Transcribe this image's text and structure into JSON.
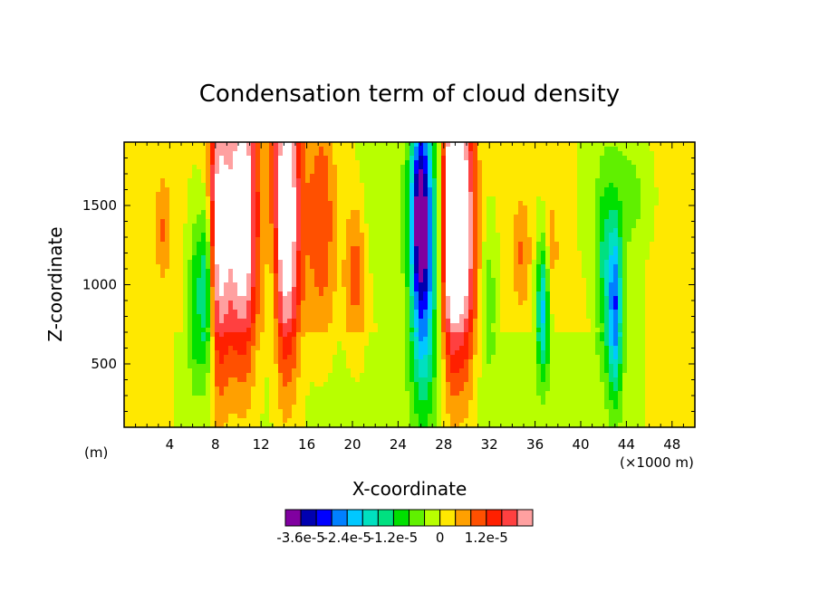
{
  "chart_data": {
    "type": "heatmap",
    "title": "Condensation term of cloud density",
    "xlabel": "X-coordinate",
    "ylabel": "Z-coordinate",
    "x_unit_left": "(m)",
    "x_unit_right": "(×1000 m)",
    "xlim": [
      0,
      50
    ],
    "ylim": [
      100,
      1900
    ],
    "x_ticks": [
      4,
      8,
      12,
      16,
      20,
      24,
      28,
      32,
      36,
      40,
      44,
      48
    ],
    "x_tick_labels": [
      "4",
      "8",
      "12",
      "16",
      "20",
      "24",
      "28",
      "32",
      "36",
      "40",
      "44",
      "48"
    ],
    "y_ticks": [
      500,
      1000,
      1500
    ],
    "y_tick_labels": [
      "500",
      "1000",
      "1500"
    ],
    "colorbar": {
      "colors": [
        "#8000a0",
        "#0000b0",
        "#0000ff",
        "#0080ff",
        "#00c8ff",
        "#00e0c0",
        "#00e080",
        "#00e000",
        "#60f000",
        "#b8ff00",
        "#ffe800",
        "#ffa000",
        "#ff5000",
        "#ff2000",
        "#ff4040",
        "#ffa0a0"
      ],
      "labels": [
        "-3.6e-5",
        "-2.4e-5",
        "-1.2e-5",
        "0",
        "1.2e-5"
      ]
    },
    "fields": [
      {
        "x": 8.3,
        "z": 1350,
        "sx": 0.75,
        "sz": 700,
        "v": 3.0
      },
      {
        "x": 10.4,
        "z": 1450,
        "sx": 0.9,
        "sz": 680,
        "v": 3.6
      },
      {
        "x": 14.2,
        "z": 1450,
        "sx": 0.9,
        "sz": 700,
        "v": 3.6
      },
      {
        "x": 17.3,
        "z": 1400,
        "sx": 0.9,
        "sz": 500,
        "v": 1.3
      },
      {
        "x": 20.3,
        "z": 1100,
        "sx": 0.7,
        "sz": 350,
        "v": 1.2
      },
      {
        "x": 28.6,
        "z": 1400,
        "sx": 0.55,
        "sz": 650,
        "v": 3.4
      },
      {
        "x": 29.8,
        "z": 1350,
        "sx": 0.7,
        "sz": 650,
        "v": 3.2
      },
      {
        "x": 34.8,
        "z": 1200,
        "sx": 0.6,
        "sz": 250,
        "v": 0.9
      },
      {
        "x": 37.4,
        "z": 1200,
        "sx": 0.5,
        "sz": 300,
        "v": 0.7
      },
      {
        "x": 3.4,
        "z": 1350,
        "sx": 0.4,
        "sz": 200,
        "v": 0.7
      },
      {
        "x": 26.2,
        "z": 1250,
        "sx": 0.8,
        "sz": 650,
        "v": -3.8
      },
      {
        "x": 25.8,
        "z": 1500,
        "sx": 0.5,
        "sz": 400,
        "v": -1.5
      },
      {
        "x": 7.2,
        "z": 1000,
        "sx": 0.45,
        "sz": 400,
        "v": -2.4
      },
      {
        "x": 6.2,
        "z": 900,
        "sx": 0.4,
        "sz": 350,
        "v": -1.2
      },
      {
        "x": 36.7,
        "z": 850,
        "sx": 0.4,
        "sz": 300,
        "v": -2.5
      },
      {
        "x": 43.0,
        "z": 850,
        "sx": 0.45,
        "sz": 380,
        "v": -3.0
      },
      {
        "x": 42.0,
        "z": 1100,
        "sx": 0.5,
        "sz": 400,
        "v": -1.2
      },
      {
        "x": 13.0,
        "z": 1000,
        "sx": 0.4,
        "sz": 400,
        "v": -0.8
      },
      {
        "x": 32.0,
        "z": 900,
        "sx": 0.4,
        "sz": 300,
        "v": -0.8
      },
      {
        "x": 22.5,
        "z": 1500,
        "sx": 2.0,
        "sz": 400,
        "v": -0.5
      },
      {
        "x": 44.0,
        "z": 1550,
        "sx": 2.0,
        "sz": 400,
        "v": -0.6
      }
    ]
  }
}
